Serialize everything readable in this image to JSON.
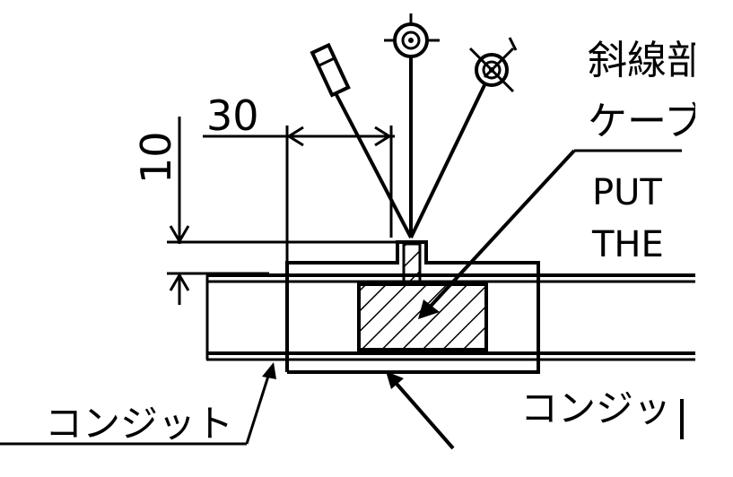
{
  "dimensions": {
    "horizontal": "30",
    "vertical": "10"
  },
  "callouts": {
    "line1": "斜線部",
    "line2": "ケーブ",
    "line3": "PUT",
    "line4": "THE"
  },
  "labels": {
    "conduit_left": "コンジット",
    "conduit_right": "コンジッ"
  },
  "colors": {
    "ink": "#000000",
    "background": "#ffffff"
  },
  "icons": [
    "rectangle-weld-symbol",
    "concentric-circle-symbol",
    "crossed-circle-symbol",
    "hatched-section"
  ]
}
